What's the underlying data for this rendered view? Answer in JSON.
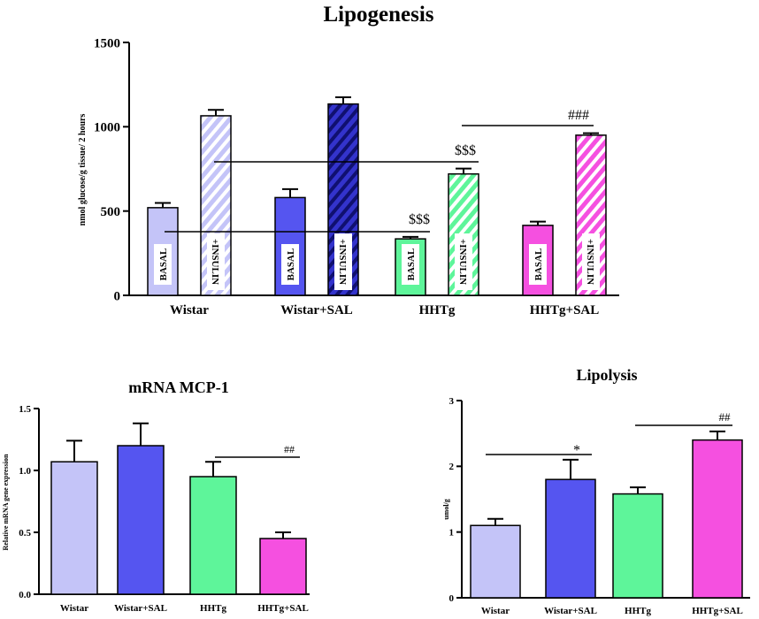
{
  "colors": {
    "wistar": "#c4c4f8",
    "wistar_sal": "#5555f0",
    "hhtg": "#5ef59a",
    "hhtg_sal": "#f550e0",
    "axis": "#000000"
  },
  "chart_data": [
    {
      "id": "lipogenesis",
      "type": "bar",
      "title": "Lipogenesis",
      "ylabel": "nmol glucose/g tissue/ 2 hours",
      "xlabel": "",
      "ylim": [
        0,
        1500
      ],
      "yticks": [
        0,
        500,
        1000,
        1500
      ],
      "categories": [
        "Wistar",
        "Wistar+SAL",
        "HHTg",
        "HHTg+SAL"
      ],
      "series": [
        {
          "name": "BASAL",
          "values": [
            520,
            580,
            335,
            415
          ],
          "errors": [
            28,
            50,
            12,
            22
          ]
        },
        {
          "name": "+INSULIN",
          "values": [
            1065,
            1135,
            720,
            950
          ],
          "errors": [
            35,
            40,
            32,
            12
          ]
        }
      ],
      "annotations": [
        {
          "text": "$$$",
          "note": "HHTg BASAL vs Wistar BASAL"
        },
        {
          "text": "$$$",
          "note": "HHTg +INSULIN vs Wistar +INSULIN"
        },
        {
          "text": "###",
          "note": "HHTg+SAL +INSULIN vs HHTg +INSULIN"
        }
      ]
    },
    {
      "id": "mcp1",
      "type": "bar",
      "title": "mRNA MCP-1",
      "ylabel": "Relative mRNA gene expression",
      "xlabel": "",
      "ylim": [
        0,
        1.5
      ],
      "yticks": [
        "0.0",
        "0.5",
        "1.0",
        "1.5"
      ],
      "categories": [
        "Wistar",
        "Wistar+SAL",
        "HHTg",
        "HHTg+SAL"
      ],
      "values": [
        1.07,
        1.2,
        0.95,
        0.45
      ],
      "errors": [
        0.17,
        0.18,
        0.12,
        0.05
      ],
      "annotations": [
        {
          "text": "##",
          "note": "HHTg+SAL vs HHTg"
        }
      ]
    },
    {
      "id": "lipolysis",
      "type": "bar",
      "title": "Lipolysis",
      "ylabel": "umol/g",
      "xlabel": "",
      "ylim": [
        0,
        3
      ],
      "yticks": [
        "0",
        "1",
        "2",
        "3"
      ],
      "categories": [
        "Wistar",
        "Wistar+SAL",
        "HHTg",
        "HHTg+SAL"
      ],
      "values": [
        1.1,
        1.8,
        1.58,
        2.4
      ],
      "errors": [
        0.1,
        0.3,
        0.1,
        0.13
      ],
      "annotations": [
        {
          "text": "*",
          "note": "Wistar+SAL vs Wistar"
        },
        {
          "text": "##",
          "note": "HHTg+SAL vs HHTg"
        }
      ]
    }
  ]
}
